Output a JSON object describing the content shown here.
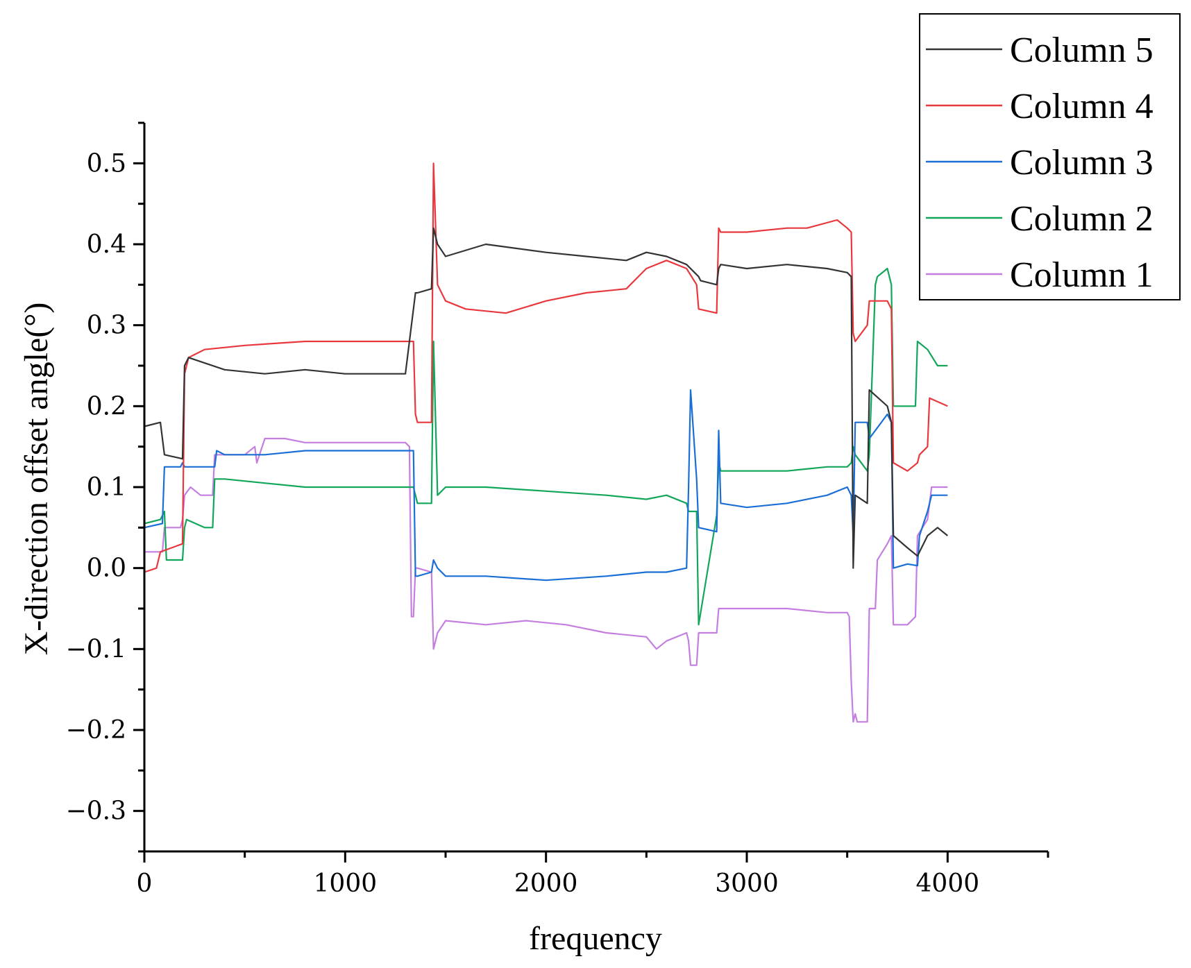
{
  "chart_data": {
    "type": "line",
    "title": "",
    "xlabel": "frequency",
    "ylabel": "X-direction offset angle(°)",
    "xlim": [
      0,
      4500
    ],
    "ylim": [
      -0.35,
      0.55
    ],
    "x_ticks": [
      0,
      1000,
      2000,
      3000,
      4000
    ],
    "x_tick_labels": [
      "0",
      "1000",
      "2000",
      "3000",
      "4000"
    ],
    "y_ticks": [
      -0.3,
      -0.2,
      -0.1,
      0.0,
      0.1,
      0.2,
      0.3,
      0.4,
      0.5
    ],
    "y_tick_labels": [
      "−0.3",
      "−0.2",
      "−0.1",
      "0.0",
      "0.1",
      "0.2",
      "0.3",
      "0.4",
      "0.5"
    ],
    "legend_position": "top-right",
    "series": [
      {
        "name": "Column 5",
        "color": "#333333",
        "x": [
          0,
          80,
          100,
          190,
          200,
          220,
          400,
          600,
          800,
          1000,
          1300,
          1350,
          1360,
          1430,
          1440,
          1460,
          1500,
          1700,
          2000,
          2200,
          2400,
          2500,
          2600,
          2700,
          2760,
          2770,
          2850,
          2860,
          2870,
          3000,
          3200,
          3400,
          3500,
          3520,
          3530,
          3540,
          3600,
          3610,
          3700,
          3720,
          3730,
          3800,
          3850,
          3900,
          3950,
          4000
        ],
        "values": [
          0.175,
          0.18,
          0.14,
          0.135,
          0.25,
          0.26,
          0.245,
          0.24,
          0.245,
          0.24,
          0.24,
          0.34,
          0.34,
          0.345,
          0.42,
          0.4,
          0.385,
          0.4,
          0.39,
          0.385,
          0.38,
          0.39,
          0.385,
          0.375,
          0.36,
          0.355,
          0.35,
          0.37,
          0.375,
          0.37,
          0.375,
          0.37,
          0.365,
          0.36,
          0.0,
          0.09,
          0.08,
          0.22,
          0.2,
          0.18,
          0.04,
          0.025,
          0.015,
          0.04,
          0.05,
          0.04
        ]
      },
      {
        "name": "Column 4",
        "color": "#e8383d",
        "x": [
          0,
          60,
          80,
          190,
          200,
          220,
          300,
          500,
          800,
          1000,
          1200,
          1340,
          1350,
          1360,
          1430,
          1440,
          1460,
          1500,
          1600,
          1800,
          2000,
          2200,
          2400,
          2500,
          2600,
          2700,
          2750,
          2760,
          2850,
          2860,
          2870,
          3000,
          3200,
          3300,
          3450,
          3500,
          3520,
          3530,
          3540,
          3600,
          3610,
          3700,
          3720,
          3730,
          3800,
          3850,
          3860,
          3900,
          3910,
          4000
        ],
        "values": [
          -0.005,
          0.0,
          0.02,
          0.03,
          0.24,
          0.26,
          0.27,
          0.275,
          0.28,
          0.28,
          0.28,
          0.28,
          0.19,
          0.18,
          0.18,
          0.5,
          0.35,
          0.33,
          0.32,
          0.315,
          0.33,
          0.34,
          0.345,
          0.37,
          0.38,
          0.37,
          0.35,
          0.32,
          0.315,
          0.42,
          0.415,
          0.415,
          0.42,
          0.42,
          0.43,
          0.42,
          0.415,
          0.29,
          0.28,
          0.3,
          0.33,
          0.33,
          0.32,
          0.13,
          0.12,
          0.13,
          0.14,
          0.15,
          0.21,
          0.2
        ]
      },
      {
        "name": "Column 3",
        "color": "#1a6fd6",
        "x": [
          0,
          90,
          100,
          180,
          190,
          200,
          350,
          360,
          400,
          600,
          800,
          1000,
          1200,
          1340,
          1350,
          1360,
          1430,
          1440,
          1460,
          1500,
          1700,
          2000,
          2300,
          2500,
          2600,
          2700,
          2710,
          2720,
          2750,
          2760,
          2850,
          2860,
          2870,
          3000,
          3200,
          3400,
          3500,
          3520,
          3530,
          3540,
          3600,
          3610,
          3700,
          3720,
          3730,
          3800,
          3850,
          3860,
          3900,
          3920,
          4000
        ],
        "values": [
          0.05,
          0.055,
          0.125,
          0.125,
          0.13,
          0.125,
          0.125,
          0.145,
          0.14,
          0.14,
          0.145,
          0.145,
          0.145,
          0.145,
          -0.01,
          -0.01,
          -0.005,
          0.01,
          0.0,
          -0.01,
          -0.01,
          -0.015,
          -0.01,
          -0.005,
          -0.005,
          0.0,
          0.1,
          0.22,
          0.11,
          0.05,
          0.045,
          0.17,
          0.08,
          0.075,
          0.08,
          0.09,
          0.1,
          0.09,
          0.04,
          0.18,
          0.18,
          0.16,
          0.19,
          0.18,
          0.0,
          0.005,
          0.003,
          0.04,
          0.07,
          0.09,
          0.09
        ]
      },
      {
        "name": "Column 2",
        "color": "#12a65a",
        "x": [
          0,
          80,
          100,
          110,
          190,
          200,
          210,
          300,
          340,
          350,
          400,
          600,
          800,
          1000,
          1200,
          1340,
          1350,
          1360,
          1430,
          1440,
          1460,
          1500,
          1700,
          2000,
          2300,
          2500,
          2600,
          2700,
          2710,
          2750,
          2760,
          2850,
          2860,
          2870,
          3000,
          3200,
          3400,
          3500,
          3520,
          3530,
          3540,
          3600,
          3610,
          3640,
          3650,
          3700,
          3720,
          3730,
          3800,
          3840,
          3850,
          3900,
          3950,
          4000
        ],
        "values": [
          0.055,
          0.06,
          0.07,
          0.01,
          0.01,
          0.05,
          0.06,
          0.05,
          0.05,
          0.11,
          0.11,
          0.105,
          0.1,
          0.1,
          0.1,
          0.1,
          0.09,
          0.08,
          0.08,
          0.28,
          0.09,
          0.1,
          0.1,
          0.095,
          0.09,
          0.085,
          0.09,
          0.08,
          0.07,
          0.07,
          -0.07,
          0.065,
          0.13,
          0.12,
          0.12,
          0.12,
          0.125,
          0.125,
          0.13,
          0.15,
          0.14,
          0.12,
          0.14,
          0.35,
          0.36,
          0.37,
          0.35,
          0.2,
          0.2,
          0.2,
          0.28,
          0.27,
          0.25,
          0.25
        ]
      },
      {
        "name": "Column 1",
        "color": "#c47ee0",
        "x": [
          0,
          90,
          100,
          180,
          190,
          200,
          230,
          280,
          340,
          350,
          400,
          500,
          550,
          560,
          600,
          700,
          800,
          900,
          1000,
          1100,
          1200,
          1300,
          1320,
          1330,
          1340,
          1350,
          1360,
          1430,
          1440,
          1460,
          1500,
          1700,
          1900,
          2100,
          2300,
          2500,
          2550,
          2600,
          2700,
          2710,
          2720,
          2750,
          2760,
          2850,
          2860,
          2870,
          3000,
          3200,
          3400,
          3500,
          3510,
          3520,
          3530,
          3540,
          3550,
          3560,
          3600,
          3610,
          3640,
          3650,
          3700,
          3720,
          3730,
          3800,
          3840,
          3850,
          3900,
          3920,
          4000
        ],
        "values": [
          0.02,
          0.02,
          0.05,
          0.05,
          0.06,
          0.09,
          0.1,
          0.09,
          0.09,
          0.14,
          0.14,
          0.14,
          0.15,
          0.13,
          0.16,
          0.16,
          0.155,
          0.155,
          0.155,
          0.155,
          0.155,
          0.155,
          0.15,
          -0.06,
          -0.06,
          0.0,
          0.0,
          -0.005,
          -0.1,
          -0.08,
          -0.065,
          -0.07,
          -0.065,
          -0.07,
          -0.08,
          -0.085,
          -0.1,
          -0.09,
          -0.08,
          -0.09,
          -0.12,
          -0.12,
          -0.08,
          -0.08,
          -0.05,
          -0.05,
          -0.05,
          -0.05,
          -0.055,
          -0.055,
          -0.06,
          -0.14,
          -0.19,
          -0.18,
          -0.19,
          -0.19,
          -0.19,
          -0.05,
          -0.05,
          0.01,
          0.03,
          0.04,
          -0.07,
          -0.07,
          -0.06,
          0.04,
          0.06,
          0.1,
          0.1
        ]
      }
    ]
  }
}
